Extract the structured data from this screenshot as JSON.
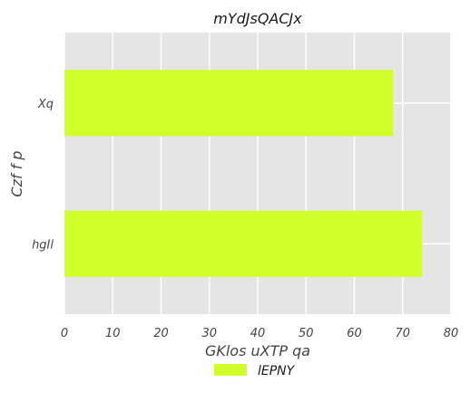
{
  "chart_data": {
    "type": "bar",
    "orientation": "horizontal",
    "title": "mYdJsQACJx",
    "xlabel": "GKlos uXTP qa",
    "ylabel": "Czf f p",
    "categories": [
      "Xq",
      "hgIl"
    ],
    "series": [
      {
        "name": "lEPNY",
        "values": [
          68,
          74
        ],
        "color": "#d0ff2a"
      }
    ],
    "xlim": [
      0,
      80
    ],
    "xticks": [
      "0",
      "10",
      "20",
      "30",
      "40",
      "50",
      "60",
      "70",
      "80"
    ],
    "grid": true,
    "legend_position": "bottom-center",
    "background_color": "#e5e5e5",
    "grid_color": "#ffffff"
  }
}
